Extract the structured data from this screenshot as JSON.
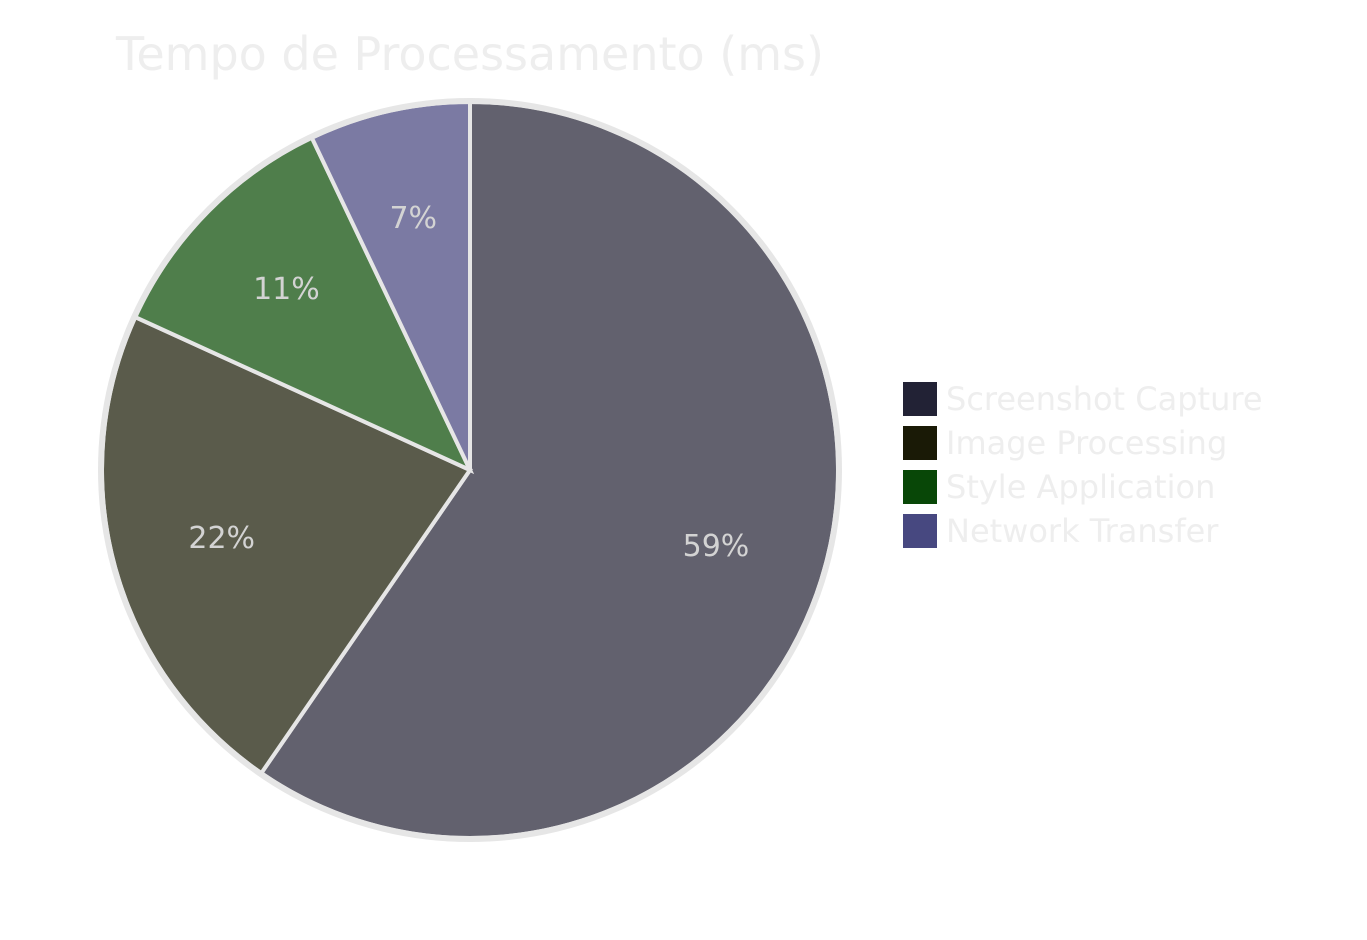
{
  "chart_data": {
    "type": "pie",
    "title": "Tempo de Processamento (ms)",
    "categories": [
      "Screenshot Capture",
      "Image Processing",
      "Style Application",
      "Network Transfer"
    ],
    "values": [
      59,
      22,
      11,
      7
    ],
    "value_labels": [
      "59%",
      "22%",
      "11%",
      "7%"
    ],
    "slice_colors": [
      "#62616e",
      "#5a5b4b",
      "#4f7e4b",
      "#7b7aa3"
    ],
    "legend_colors": [
      "#222235",
      "#1a1a06",
      "#084707",
      "#474880"
    ],
    "start_angle_deg": 0,
    "direction": "clockwise",
    "legend_position": "right"
  }
}
